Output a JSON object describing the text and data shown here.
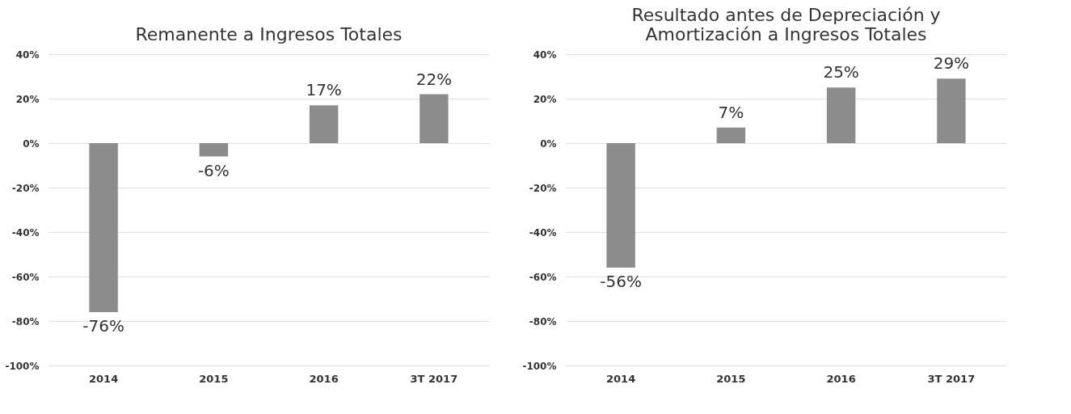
{
  "chart_data": [
    {
      "type": "bar",
      "title": "Remanente a Ingresos Totales",
      "categories": [
        "2014",
        "2015",
        "2016",
        "3T 2017"
      ],
      "values": [
        -76,
        -6,
        17,
        22
      ],
      "color": "#8c8c8c",
      "value_labels": [
        "-76%",
        "-6%",
        "17%",
        "22%"
      ],
      "ylim": [
        -100,
        40
      ],
      "yticks": [
        {
          "value": -100,
          "label": "-100%"
        },
        {
          "value": -80,
          "label": "-80%"
        },
        {
          "value": -60,
          "label": "-60%"
        },
        {
          "value": -40,
          "label": "-40%"
        },
        {
          "value": -20,
          "label": "-20%"
        },
        {
          "value": 0,
          "label": "0%"
        },
        {
          "value": 20,
          "label": "20%"
        },
        {
          "value": 40,
          "label": "40%"
        }
      ],
      "grid": "y"
    },
    {
      "type": "bar",
      "title": "Resultado antes de Depreciación y Amortización a Ingresos Totales",
      "categories": [
        "2014",
        "2015",
        "2016",
        "3T 2017"
      ],
      "values": [
        -56,
        7,
        25,
        29
      ],
      "color": "#8c8c8c",
      "value_labels": [
        "-56%",
        "7%",
        "25%",
        "29%"
      ],
      "ylim": [
        -100,
        40
      ],
      "yticks": [
        {
          "value": -100,
          "label": "-100%"
        },
        {
          "value": -80,
          "label": "-80%"
        },
        {
          "value": -60,
          "label": "-60%"
        },
        {
          "value": -40,
          "label": "-40%"
        },
        {
          "value": -20,
          "label": "-20%"
        },
        {
          "value": 0,
          "label": "0%"
        },
        {
          "value": 20,
          "label": "20%"
        },
        {
          "value": 40,
          "label": "40%"
        }
      ],
      "grid": "y"
    }
  ]
}
